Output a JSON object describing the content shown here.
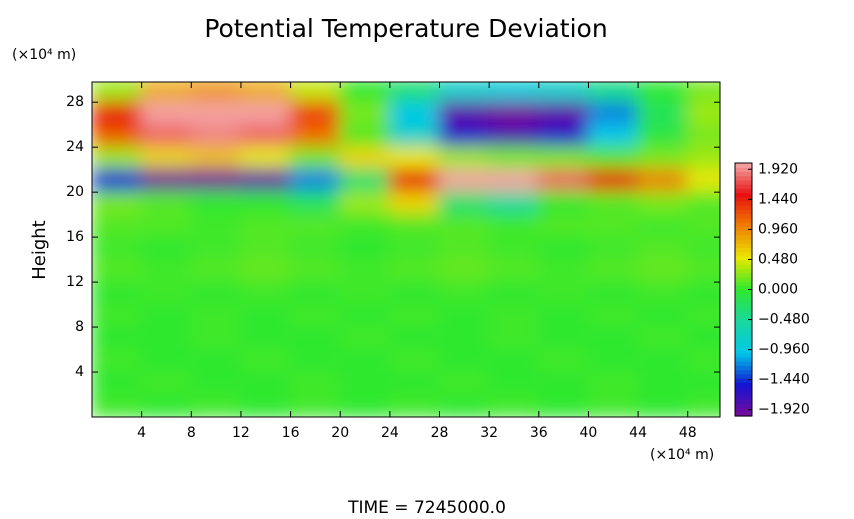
{
  "chart_data": {
    "type": "heatmap",
    "title": "Potential Temperature Deviation",
    "y_unit": "(×10⁴ m)",
    "y_label": "Height",
    "x_unit": "(×10⁴ m)",
    "footer": "TIME  =  7245000.0",
    "xlim": [
      0,
      50.6
    ],
    "ylim": [
      0,
      29.8
    ],
    "xticks": [
      4,
      8,
      12,
      16,
      20,
      24,
      28,
      32,
      36,
      40,
      44,
      48
    ],
    "yticks": [
      4,
      8,
      12,
      16,
      20,
      24,
      28
    ],
    "x": [
      2,
      6,
      10,
      14,
      18,
      22,
      26,
      30,
      34,
      38,
      42,
      46,
      50
    ],
    "y": [
      29,
      27,
      25,
      23,
      21,
      19,
      17,
      15,
      13,
      11,
      9,
      7,
      5,
      3,
      1
    ],
    "z": [
      [
        0.3,
        0.8,
        0.9,
        0.8,
        0.4,
        0,
        -0.3,
        -0.8,
        -0.9,
        -0.8,
        -0.4,
        0,
        0.2
      ],
      [
        1.5,
        2,
        2,
        2,
        1.3,
        0.2,
        -1,
        -1.9,
        -2,
        -1.9,
        -1.2,
        -0.2,
        0.3
      ],
      [
        1.2,
        1.8,
        1.9,
        1.8,
        1.1,
        0.1,
        -0.8,
        -1.6,
        -1.8,
        -1.6,
        -1,
        -0.1,
        0.2
      ],
      [
        0.3,
        0.6,
        0.7,
        0.5,
        0.2,
        0.6,
        0.5,
        0.3,
        0.2,
        0.2,
        0.1,
        0.2,
        0.3
      ],
      [
        -1.5,
        -2,
        -2,
        -1.9,
        -1.2,
        -0.3,
        1.5,
        2,
        2,
        1.8,
        1.5,
        1,
        0.5
      ],
      [
        0.2,
        0.1,
        0,
        0,
        -0.2,
        0.3,
        0.6,
        -0.3,
        -0.5,
        0,
        0.1,
        0.2,
        0.1
      ],
      [
        0.1,
        0.1,
        0.05,
        0.1,
        0.1,
        0.05,
        0.1,
        0.1,
        0.05,
        0.1,
        0.1,
        0.05,
        0.1
      ],
      [
        0.05,
        0,
        0.05,
        0.1,
        0.05,
        0,
        0.05,
        0.1,
        0.05,
        0,
        0.05,
        0.1,
        0.05
      ],
      [
        0.1,
        0.05,
        0.1,
        0.15,
        0.1,
        0.05,
        0.1,
        0.15,
        0.1,
        0.05,
        0.1,
        0.15,
        0.1
      ],
      [
        0,
        0.05,
        0,
        0.05,
        0,
        0.05,
        0,
        0.05,
        0,
        0.05,
        0,
        0.05,
        0
      ],
      [
        0.05,
        0,
        0.05,
        0,
        0.05,
        0,
        0.05,
        0,
        0.05,
        0,
        0.05,
        0,
        0.05
      ],
      [
        0,
        0,
        0.05,
        0,
        0,
        0.05,
        0,
        0,
        0.05,
        0,
        0,
        0.05,
        0
      ],
      [
        0.05,
        0,
        0,
        0.05,
        0,
        0,
        0.05,
        0,
        0,
        0.05,
        0,
        0,
        0.05
      ],
      [
        0,
        0.05,
        0,
        0,
        0.05,
        0,
        0,
        0.05,
        0,
        0,
        0.05,
        0,
        0
      ],
      [
        0.05,
        0,
        0.05,
        0,
        0.05,
        0,
        0.05,
        0,
        0.05,
        0,
        0.05,
        0,
        0.05
      ]
    ],
    "clim": [
      -2.02,
      2.02
    ],
    "colorscale": [
      "#7a0a9a",
      "#1414d2",
      "#00c8e8",
      "#18d8a0",
      "#2ee82e",
      "#e8e800",
      "#f08000",
      "#e81010",
      "#f4a8a8"
    ],
    "cticks": [
      {
        "value": 1.92,
        "label": "1.920"
      },
      {
        "value": 1.44,
        "label": "1.440"
      },
      {
        "value": 0.96,
        "label": "0.960"
      },
      {
        "value": 0.48,
        "label": "0.480"
      },
      {
        "value": 0,
        "label": "0.000"
      },
      {
        "value": -0.48,
        "label": "−0.480"
      },
      {
        "value": -0.96,
        "label": "−0.960"
      },
      {
        "value": -1.44,
        "label": "−1.440"
      },
      {
        "value": -1.92,
        "label": "−1.920"
      }
    ]
  }
}
